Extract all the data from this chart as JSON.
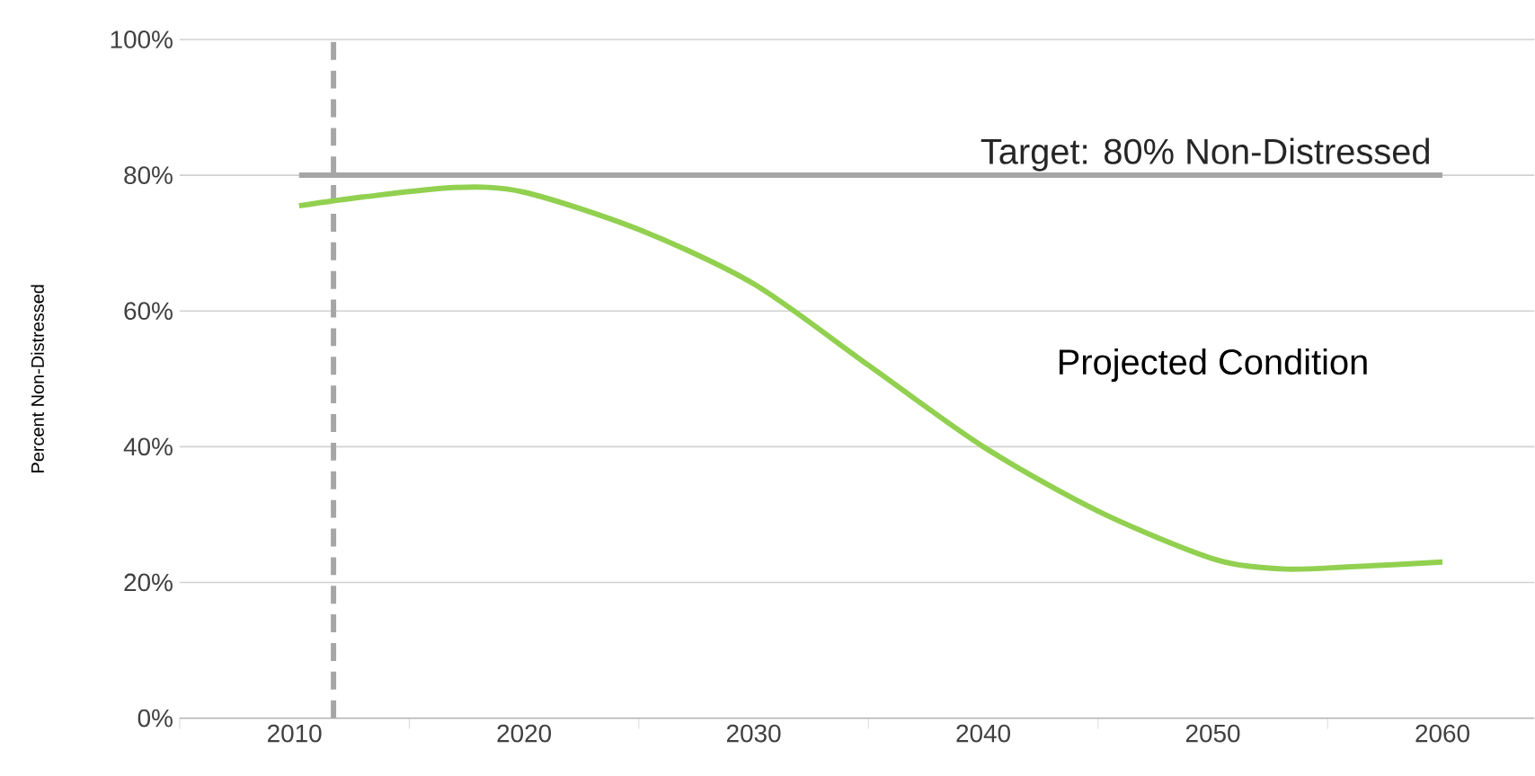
{
  "chart_data": {
    "type": "line",
    "ylabel": "Percent Non-Distressed",
    "xlim": [
      2005,
      2064
    ],
    "ylim": [
      0,
      100
    ],
    "xticks": [
      {
        "value": 2005,
        "label": null
      },
      2010,
      {
        "value": 2015,
        "label": null
      },
      2020,
      {
        "value": 2025,
        "label": null
      },
      2030,
      {
        "value": 2035,
        "label": null
      },
      2040,
      {
        "value": 2045,
        "label": null
      },
      2050,
      {
        "value": 2055,
        "label": null
      },
      2060
    ],
    "yticks": [
      {
        "value": 0,
        "label": "0%"
      },
      {
        "value": 20,
        "label": "20%"
      },
      {
        "value": 40,
        "label": "40%"
      },
      {
        "value": 60,
        "label": "60%"
      },
      {
        "value": 80,
        "label": "80%"
      },
      {
        "value": 100,
        "label": "100%"
      }
    ],
    "grid": "y",
    "legend": false,
    "marker": "none",
    "line_style": "solid",
    "series": [
      {
        "name": "Target: 80% Non-Distressed",
        "color": "#a6a6a6",
        "x": [
          2010.2,
          2060
        ],
        "values": [
          80,
          80
        ]
      },
      {
        "name": "Projected Condition",
        "color": "#92d050",
        "x": [
          2010.2,
          2013,
          2017,
          2020,
          2025,
          2030,
          2035,
          2040,
          2045,
          2050,
          2053,
          2056,
          2060
        ],
        "values": [
          75.5,
          76.8,
          78.2,
          77.5,
          72,
          64,
          52,
          40,
          30.5,
          23.5,
          22,
          22.3,
          23
        ]
      }
    ],
    "ref_lines": [
      {
        "axis": "x",
        "value": 2011.7,
        "label": null,
        "color": "#a6a6a6",
        "line_style": "dashed"
      }
    ]
  }
}
